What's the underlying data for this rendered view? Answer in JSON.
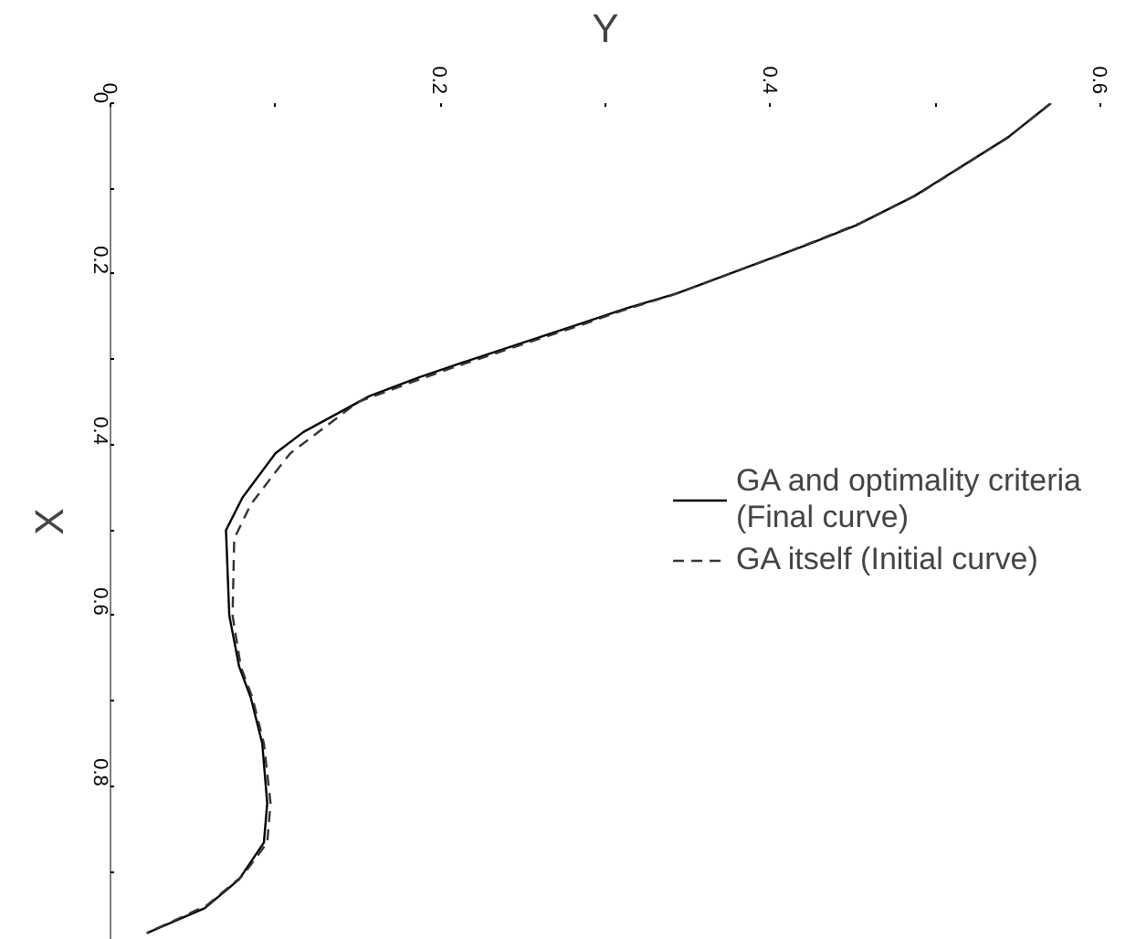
{
  "chart_data": {
    "type": "line",
    "xlabel": "Y",
    "ylabel": "X",
    "xlim": [
      0,
      0.6
    ],
    "ylim": [
      0.98,
      0
    ],
    "xticks": [
      0,
      {
        "value": 0.1,
        "label": null
      },
      0.2,
      {
        "value": 0.3,
        "label": null
      },
      0.4,
      {
        "value": 0.5,
        "label": null
      },
      0.6
    ],
    "yticks": [
      0,
      {
        "value": 0.1,
        "label": null
      },
      0.2,
      {
        "value": 0.3,
        "label": null
      },
      0.4,
      {
        "value": 0.5,
        "label": null
      },
      0.6,
      {
        "value": 0.7,
        "label": null
      },
      0.8,
      {
        "value": 0.9,
        "label": null
      }
    ],
    "grid": false,
    "legend": "right",
    "marker": "none",
    "series": [
      {
        "name": "GA and optimality criteria\n(Final curve)",
        "color": "#000000",
        "line_style": "solid",
        "x": [
          0.57,
          0.544,
          0.487,
          0.452,
          0.422,
          0.343,
          0.313,
          0.287,
          0.213,
          0.187,
          0.157,
          0.117,
          0.1,
          0.08,
          0.07,
          0.072,
          0.078,
          0.085,
          0.092,
          0.095,
          0.093,
          0.078,
          0.057,
          0.022
        ],
        "values": [
          0.0,
          0.04,
          0.109,
          0.143,
          0.166,
          0.223,
          0.24,
          0.257,
          0.304,
          0.321,
          0.343,
          0.385,
          0.41,
          0.462,
          0.5,
          0.6,
          0.66,
          0.696,
          0.75,
          0.82,
          0.866,
          0.909,
          0.943,
          0.972
        ]
      },
      {
        "name": "GA itself (Initial curve)",
        "color": "#333333",
        "line_style": "dashed",
        "x": [
          0.57,
          0.544,
          0.49,
          0.455,
          0.407,
          0.34,
          0.31,
          0.285,
          0.213,
          0.185,
          0.15,
          0.109,
          0.1,
          0.085,
          0.075,
          0.074,
          0.079,
          0.086,
          0.093,
          0.097,
          0.095,
          0.08,
          0.058,
          0.022
        ],
        "values": [
          0.0,
          0.04,
          0.106,
          0.14,
          0.177,
          0.225,
          0.243,
          0.26,
          0.306,
          0.325,
          0.35,
          0.41,
          0.432,
          0.47,
          0.51,
          0.6,
          0.66,
          0.696,
          0.75,
          0.82,
          0.866,
          0.905,
          0.94,
          0.972
        ]
      }
    ]
  }
}
